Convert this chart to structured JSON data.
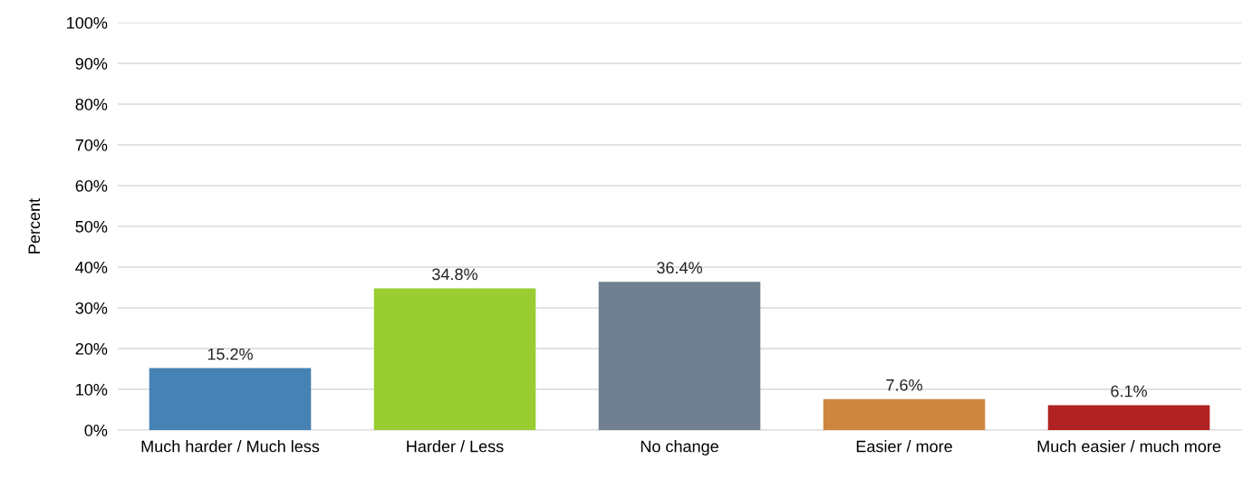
{
  "chart_data": {
    "type": "bar",
    "ylabel": "Percent",
    "categories": [
      "Much harder / Much less",
      "Harder / Less",
      "No change",
      "Easier / more",
      "Much easier / much more"
    ],
    "values": [
      15.2,
      34.8,
      36.4,
      7.6,
      6.1
    ],
    "colors": [
      "#4682b4",
      "#9acd32",
      "#708090",
      "#cd853f",
      "#b22222"
    ],
    "value_labels": [
      "15.2%",
      "34.8%",
      "36.4%",
      "7.6%",
      "6.1%"
    ],
    "ylim": [
      0,
      100
    ],
    "yticks": [
      {
        "value": 0,
        "label": "0%"
      },
      {
        "value": 10,
        "label": "10%"
      },
      {
        "value": 20,
        "label": "20%"
      },
      {
        "value": 30,
        "label": "30%"
      },
      {
        "value": 40,
        "label": "40%"
      },
      {
        "value": 50,
        "label": "50%"
      },
      {
        "value": 60,
        "label": "60%"
      },
      {
        "value": 70,
        "label": "70%"
      },
      {
        "value": 80,
        "label": "80%"
      },
      {
        "value": 90,
        "label": "90%"
      },
      {
        "value": 100,
        "label": "100%"
      }
    ],
    "grid": "y",
    "legend": false
  }
}
